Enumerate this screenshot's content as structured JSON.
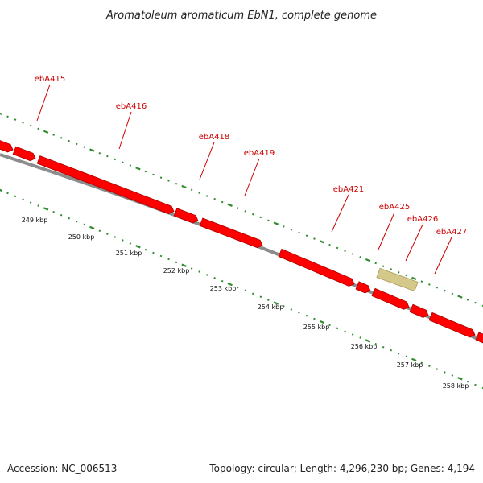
{
  "title": "Aromatoleum aromaticum EbN1, complete genome",
  "footer": {
    "accession": "Accession: NC_006513",
    "summary": "Topology: circular; Length: 4,296,230 bp; Genes: 4,194"
  },
  "colors": {
    "gene": "#ff0000",
    "gene_edge": "#aa0000",
    "highlight_gene": "#d4c98a",
    "backbone": "#8c8c8c",
    "tick": "#2e8b2e",
    "label": "#cc0000"
  },
  "gene_labels": [
    "ebA415",
    "ebA416",
    "ebA418",
    "ebA419",
    "ebA421",
    "ebA425",
    "ebA426",
    "ebA427"
  ],
  "kbp_labels": [
    "249 kbp",
    "250 kbp",
    "251 kbp",
    "252 kbp",
    "253 kbp",
    "254 kbp",
    "255 kbp",
    "256 kbp",
    "257 kbp",
    "258 kbp"
  ]
}
